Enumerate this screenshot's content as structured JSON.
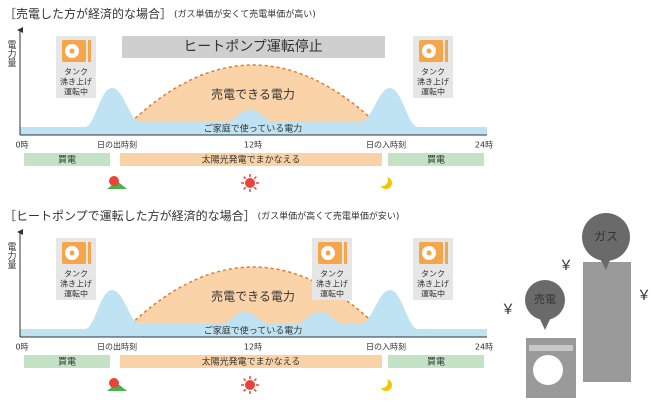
{
  "sections": [
    {
      "title": "［売電した方が経済的な場合］",
      "subtitle": "(ガス単価が安くて売電単価が高い)",
      "y_axis_label": "電力量",
      "banner": "ヒートポンプ運転停止",
      "tank_labels": [
        [
          "タンク",
          "沸き上げ",
          "運転中"
        ],
        [
          "タンク",
          "沸き上げ",
          "運転中"
        ]
      ],
      "sell_label": "売電できる電力",
      "home_label": "ご家庭で使っている電力",
      "x_labels": [
        "0時",
        "日の出時刻",
        "12時",
        "日の入時刻",
        "24時"
      ],
      "period_bars": [
        "買電",
        "太陽光発電でまかなえる",
        "買電"
      ]
    },
    {
      "title": "［ヒートポンプで運転した方が経済的な場合］",
      "subtitle": "(ガス単価が高くて売電単価が安い)",
      "y_axis_label": "電力量",
      "tank_labels": [
        [
          "タンク",
          "沸き上げ",
          "運転中"
        ],
        [
          "タンク",
          "沸き上げ",
          "運転中"
        ],
        [
          "タンク",
          "沸き上げ",
          "運転中"
        ]
      ],
      "sell_label": "売電できる電力",
      "home_label": "ご家庭で使っている電力",
      "x_labels": [
        "0時",
        "日の出時刻",
        "12時",
        "日の入時刻",
        "24時"
      ],
      "period_bars": [
        "買電",
        "太陽光発電でまかなえる",
        "買電"
      ]
    }
  ],
  "illustration": {
    "gas": "ガス",
    "sell": "売電",
    "yen": [
      "￥",
      "￥",
      "￥"
    ]
  }
}
